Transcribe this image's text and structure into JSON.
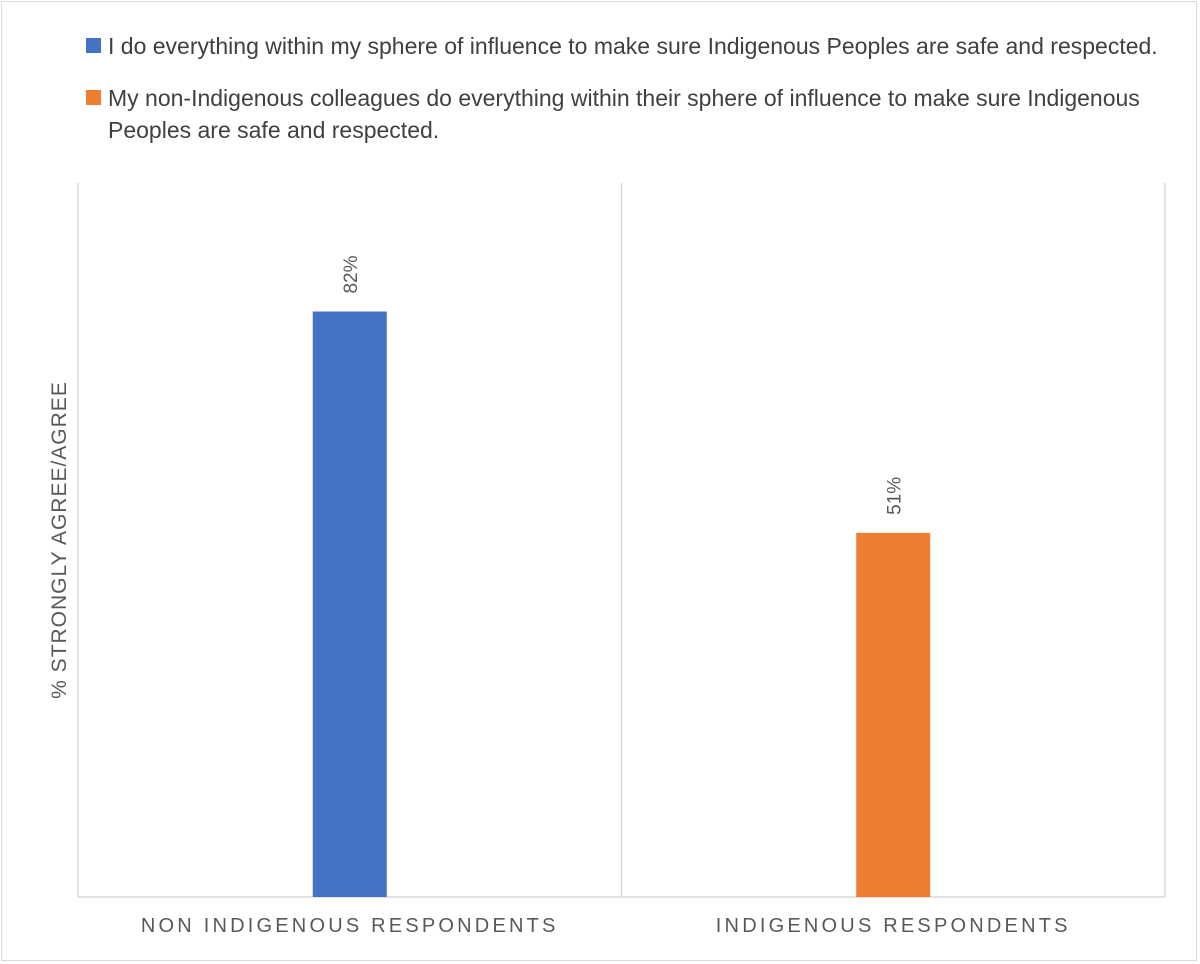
{
  "chart_data": {
    "type": "bar",
    "categories": [
      "NON INDIGENOUS RESPONDENTS",
      "INDIGENOUS RESPONDENTS"
    ],
    "series": [
      {
        "name": "I do everything within my sphere of influence to make sure Indigenous Peoples are safe and respected.",
        "color": "#4472C4",
        "values": [
          82,
          null
        ],
        "labels": [
          "82%",
          ""
        ]
      },
      {
        "name": "My non-Indigenous colleagues do everything within their sphere of influence to make sure Indigenous Peoples are safe and respected.",
        "color": "#ED7D31",
        "values": [
          null,
          51
        ],
        "labels": [
          "",
          "51%"
        ]
      }
    ],
    "ylabel": "% STRONGLY AGREE/AGREE",
    "xlabel": "",
    "ylim": [
      0,
      100
    ],
    "grid": false,
    "legend_position": "top"
  }
}
